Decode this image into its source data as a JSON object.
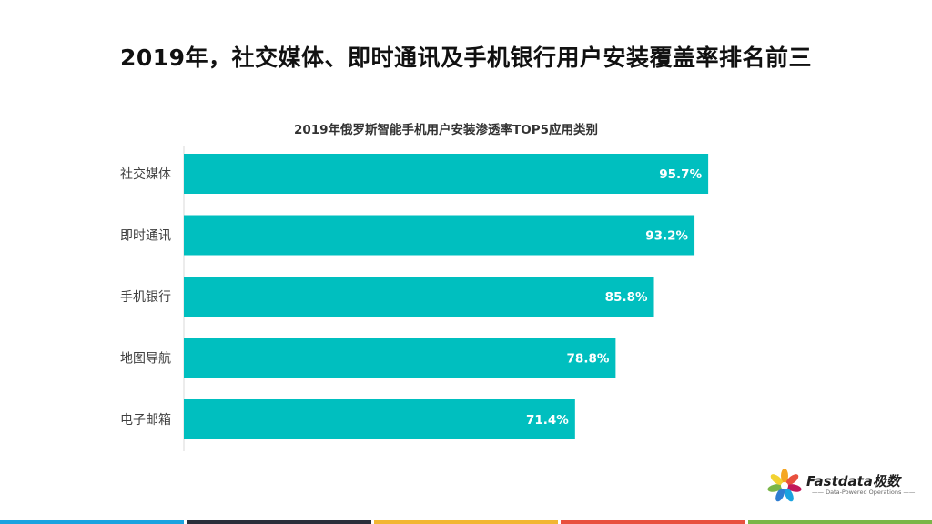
{
  "page": {
    "title": "2019年，社交媒体、即时通讯及手机银行用户安装覆盖率排名前三"
  },
  "chart_data": {
    "type": "bar",
    "orientation": "horizontal",
    "title": "2019年俄罗斯智能手机用户安装渗透率TOP5应用类别",
    "categories": [
      "社交媒体",
      "即时通讯",
      "手机银行",
      "地图导航",
      "电子邮箱"
    ],
    "values": [
      95.7,
      93.2,
      85.8,
      78.8,
      71.4
    ],
    "value_labels": [
      "95.7%",
      "93.2%",
      "85.8%",
      "78.8%",
      "71.4%"
    ],
    "unit": "%",
    "xlim": [
      0,
      100
    ],
    "bar_color": "#00BFBF",
    "grid": false,
    "legend": "none"
  },
  "logo": {
    "brand": "Fastdata极数",
    "tagline": "—— Data-Powered Operations ——",
    "icon": "flower-logo-icon"
  },
  "footer": {
    "strip_colors": [
      "#1aa3e0",
      "#2a2e3a",
      "#f2b632",
      "#e8503e",
      "#7ab648"
    ]
  }
}
